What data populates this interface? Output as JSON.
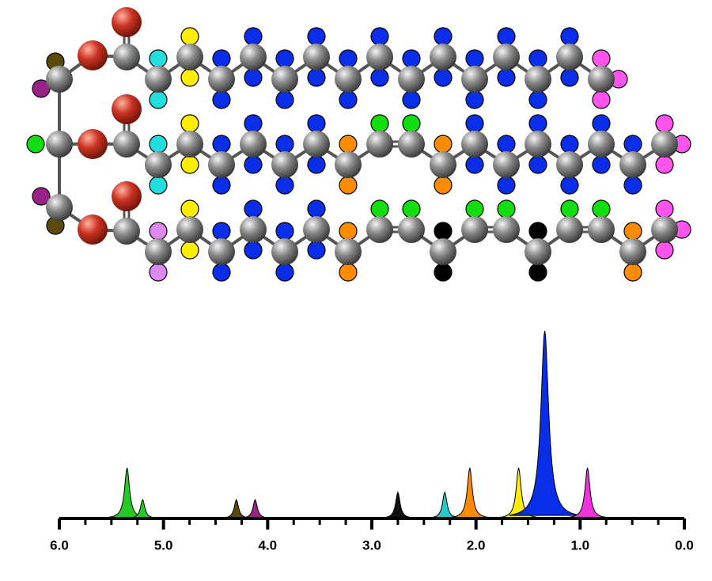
{
  "chart_data": {
    "type": "nmr",
    "peaks": [
      {
        "x": 5.35,
        "height": 27,
        "color": "#22cc22"
      },
      {
        "x": 5.2,
        "height": 10,
        "color": "#22cc22"
      },
      {
        "x": 4.3,
        "height": 10,
        "color": "#5a4a0a"
      },
      {
        "x": 4.12,
        "height": 10,
        "color": "#992288"
      },
      {
        "x": 2.75,
        "height": 14,
        "color": "#111111"
      },
      {
        "x": 2.3,
        "height": 14,
        "color": "#22cccc"
      },
      {
        "x": 2.06,
        "height": 27,
        "color": "#ff8c00"
      },
      {
        "x": 1.59,
        "height": 27,
        "color": "#ffee00"
      },
      {
        "x": 1.34,
        "height": 100,
        "color": "#0a2ee8"
      },
      {
        "x": 0.93,
        "height": 27,
        "color": "#ee33dd"
      }
    ],
    "xlim": [
      6,
      0
    ],
    "xticks": [
      {
        "value": 6,
        "label": "6.0"
      },
      {
        "value": 5,
        "label": "5.0"
      },
      {
        "value": 4,
        "label": "4.0"
      },
      {
        "value": 3,
        "label": "3.0"
      },
      {
        "value": 2,
        "label": "2.0"
      },
      {
        "value": 1,
        "label": "1.0"
      },
      {
        "value": 0,
        "label": "0.0"
      }
    ]
  }
}
